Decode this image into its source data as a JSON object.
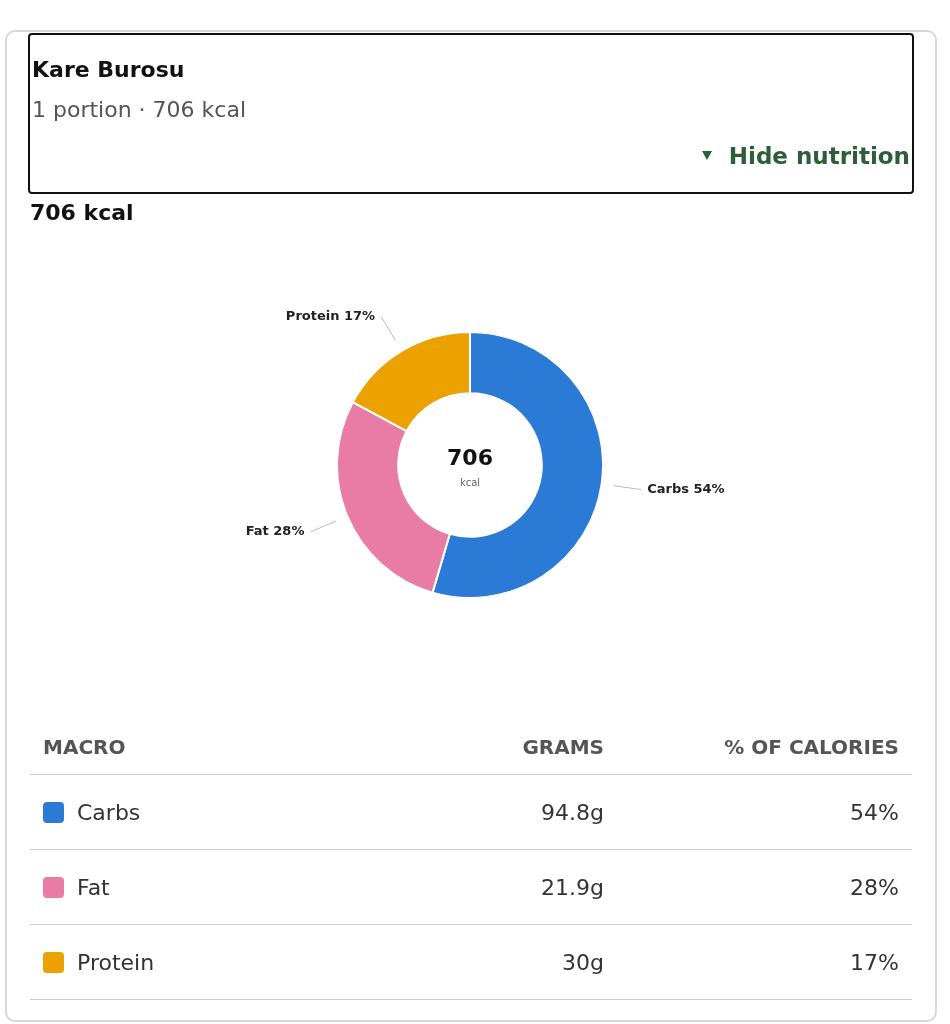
{
  "chart_data": {
    "type": "donut",
    "title": "Kare Burosu",
    "subtitle": "1 portion · 706 kcal",
    "categories": [
      "Carbs",
      "Fat",
      "Protein"
    ],
    "values": [
      54,
      28,
      17
    ],
    "value_labels": [
      "54%",
      "28%",
      "17%"
    ],
    "colors": [
      "#2a7ad6",
      "#e87ca5",
      "#eba100"
    ],
    "legend": "bottom",
    "annotations": [
      "706 kcal",
      "706",
      "kcal",
      "Hide nutrition",
      "MACRO",
      "GRAMS",
      "% OF CALORIES",
      "94.8g",
      "21.9g",
      "30g"
    ]
  }
}
